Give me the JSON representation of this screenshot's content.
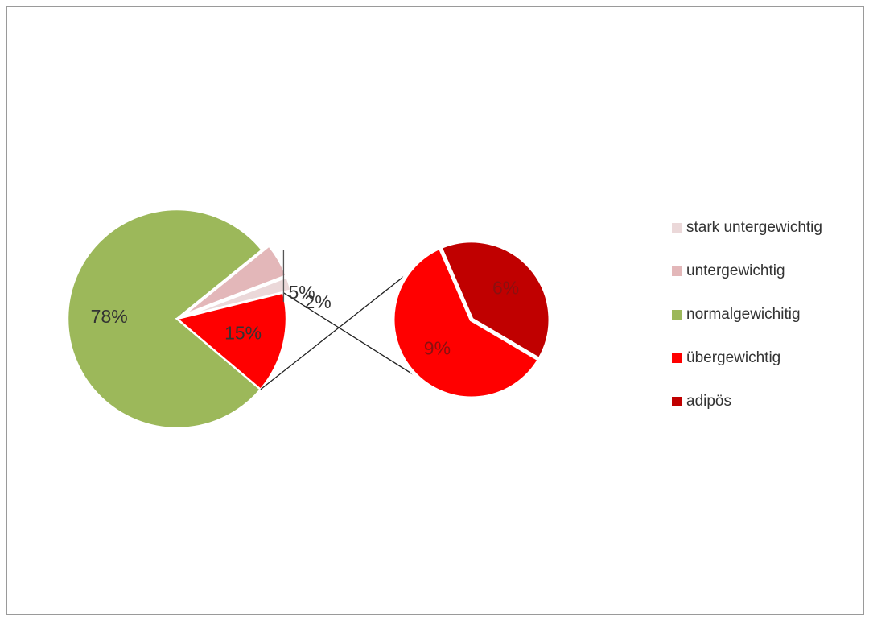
{
  "chart_data": {
    "type": "pie",
    "subtype": "pie-of-pie",
    "title": "",
    "legend_position": "right",
    "categories": [
      "stark untergewichtig",
      "untergewichtig",
      "normalgewichitig",
      "übergewichtig",
      "adipös"
    ],
    "colors": [
      "#ebd8d9",
      "#e3b7b9",
      "#9cb85a",
      "#ff0000",
      "#c00000"
    ],
    "main_pie": {
      "slices": [
        {
          "category": "normalgewichitig",
          "value": 78,
          "label": "78%",
          "color": "#9cb85a"
        },
        {
          "category": "übergewichtig + adipös",
          "value": 15,
          "label": "15%",
          "color": "#ff0000"
        },
        {
          "category": "stark untergewichtig",
          "value": 2,
          "label": "2%",
          "color": "#ebd8d9"
        },
        {
          "category": "untergewichtig",
          "value": 5,
          "label": "5%",
          "color": "#e3b7b9"
        }
      ]
    },
    "secondary_pie": {
      "slices": [
        {
          "category": "adipös",
          "value": 6,
          "label": "6%",
          "color": "#c00000"
        },
        {
          "category": "übergewichtig",
          "value": 9,
          "label": "9%",
          "color": "#ff0000"
        }
      ]
    }
  }
}
